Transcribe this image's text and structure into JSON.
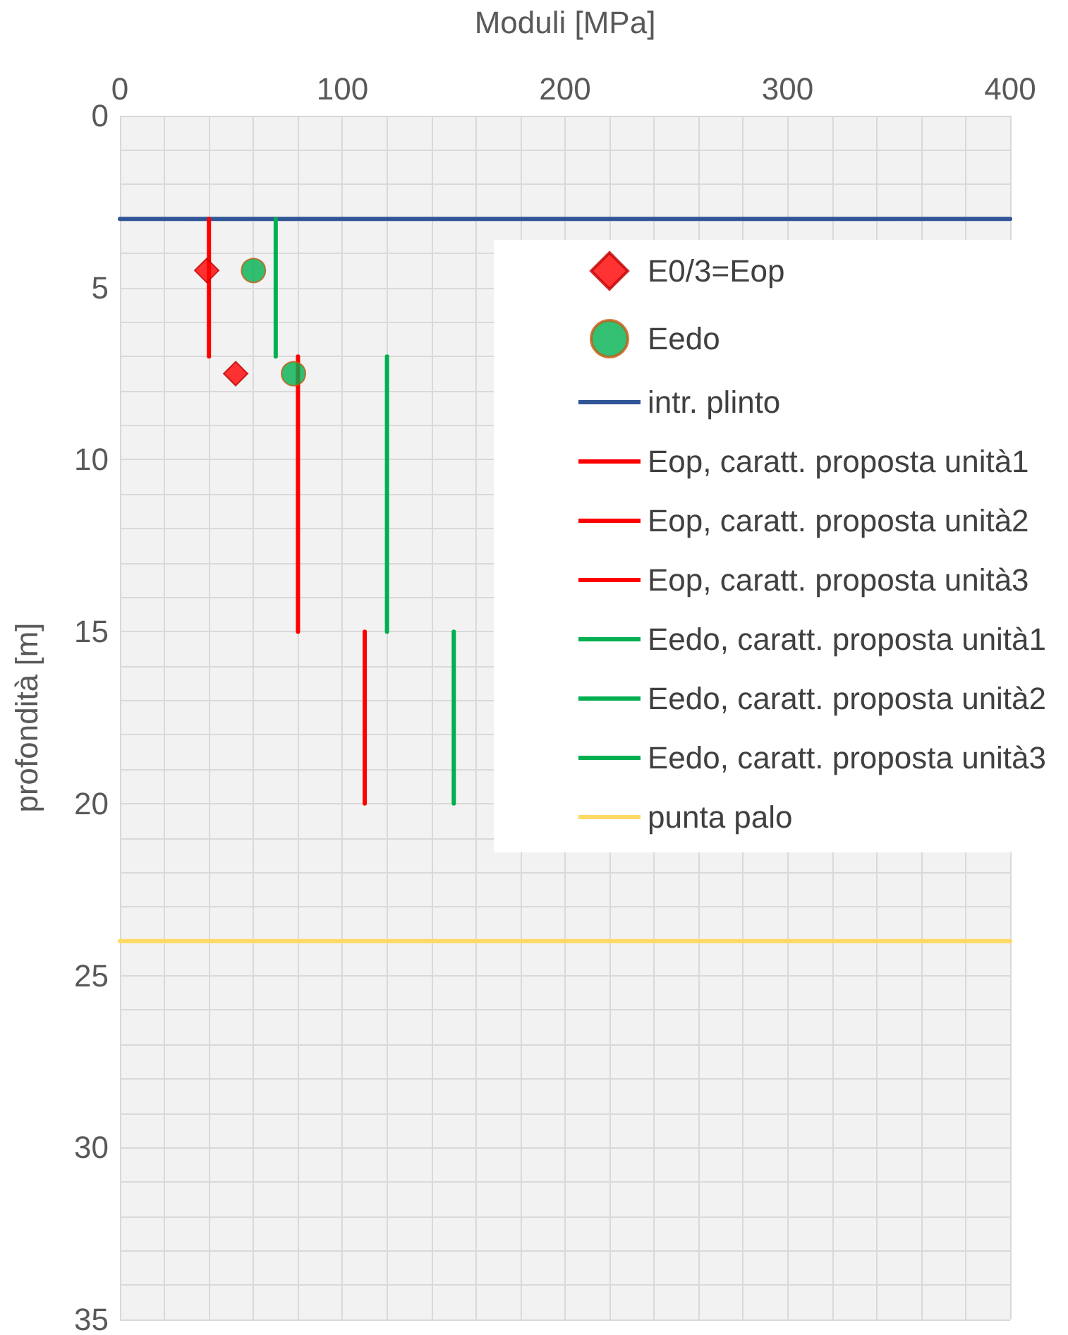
{
  "chart_data": {
    "type": "line",
    "xlabel": "Moduli [MPa]",
    "ylabel": "profondità [m]",
    "xlim": [
      0,
      400
    ],
    "ylim": [
      35,
      0
    ],
    "xticks": [
      0,
      {
        "value": 20,
        "label": null
      },
      {
        "value": 40,
        "label": null
      },
      {
        "value": 60,
        "label": null
      },
      {
        "value": 80,
        "label": null
      },
      100,
      {
        "value": 120,
        "label": null
      },
      {
        "value": 140,
        "label": null
      },
      {
        "value": 160,
        "label": null
      },
      {
        "value": 180,
        "label": null
      },
      200,
      {
        "value": 220,
        "label": null
      },
      {
        "value": 240,
        "label": null
      },
      {
        "value": 260,
        "label": null
      },
      {
        "value": 280,
        "label": null
      },
      300,
      {
        "value": 320,
        "label": null
      },
      {
        "value": 340,
        "label": null
      },
      {
        "value": 360,
        "label": null
      },
      {
        "value": 380,
        "label": null
      },
      400
    ],
    "yticks": [
      0,
      {
        "value": 1,
        "label": null
      },
      {
        "value": 2,
        "label": null
      },
      {
        "value": 3,
        "label": null
      },
      {
        "value": 4,
        "label": null
      },
      5,
      {
        "value": 6,
        "label": null
      },
      {
        "value": 7,
        "label": null
      },
      {
        "value": 8,
        "label": null
      },
      {
        "value": 9,
        "label": null
      },
      10,
      {
        "value": 11,
        "label": null
      },
      {
        "value": 12,
        "label": null
      },
      {
        "value": 13,
        "label": null
      },
      {
        "value": 14,
        "label": null
      },
      15,
      {
        "value": 16,
        "label": null
      },
      {
        "value": 17,
        "label": null
      },
      {
        "value": 18,
        "label": null
      },
      {
        "value": 19,
        "label": null
      },
      20,
      {
        "value": 21,
        "label": null
      },
      {
        "value": 22,
        "label": null
      },
      {
        "value": 23,
        "label": null
      },
      {
        "value": 24,
        "label": null
      },
      25,
      {
        "value": 26,
        "label": null
      },
      {
        "value": 27,
        "label": null
      },
      {
        "value": 28,
        "label": null
      },
      {
        "value": 29,
        "label": null
      },
      30,
      {
        "value": 31,
        "label": null
      },
      {
        "value": 32,
        "label": null
      },
      {
        "value": 33,
        "label": null
      },
      {
        "value": 34,
        "label": null
      },
      35
    ],
    "grid": true,
    "legend": "right",
    "series": [
      {
        "name": "E0/3=Eop",
        "type": "scatter",
        "marker": "diamond",
        "color": "#ff0000",
        "x": [
          39,
          52
        ],
        "values": [
          4.5,
          7.5
        ]
      },
      {
        "name": "Eedo",
        "type": "scatter",
        "marker": "circle",
        "color": "#00b050",
        "x": [
          60,
          78
        ],
        "values": [
          4.5,
          7.5
        ]
      },
      {
        "name": "intr. plinto",
        "marker": "none",
        "color": "#2f5597",
        "x": [
          0,
          400
        ],
        "values": [
          3,
          3
        ]
      },
      {
        "name": "Eop, caratt. proposta unità1",
        "marker": "none",
        "color": "#ff0000",
        "x": [
          40,
          40
        ],
        "values": [
          3,
          7
        ]
      },
      {
        "name": "Eop, caratt. proposta unità2",
        "marker": "none",
        "color": "#ff0000",
        "x": [
          80,
          80
        ],
        "values": [
          7,
          15
        ]
      },
      {
        "name": "Eop, caratt. proposta unità3",
        "marker": "none",
        "color": "#ff0000",
        "x": [
          110,
          110
        ],
        "values": [
          15,
          20
        ]
      },
      {
        "name": "Eedo, caratt. proposta unità1",
        "marker": "none",
        "color": "#00b050",
        "x": [
          70,
          70
        ],
        "values": [
          3,
          7
        ]
      },
      {
        "name": "Eedo, caratt. proposta unità2",
        "marker": "none",
        "color": "#00b050",
        "x": [
          120,
          120
        ],
        "values": [
          7,
          15
        ]
      },
      {
        "name": "Eedo, caratt. proposta unità3",
        "marker": "none",
        "color": "#00b050",
        "x": [
          150,
          150
        ],
        "values": [
          15,
          20
        ]
      },
      {
        "name": "punta palo",
        "marker": "none",
        "color": "#ffd966",
        "x": [
          0,
          400
        ],
        "values": [
          24,
          24
        ]
      }
    ]
  }
}
